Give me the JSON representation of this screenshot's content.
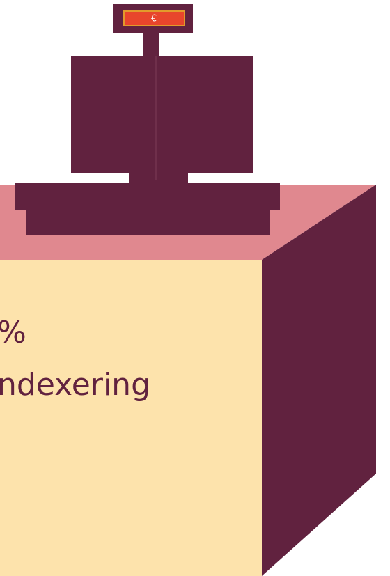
{
  "display": {
    "symbol": "€"
  },
  "box": {
    "lines": [
      "%",
      "ndexering"
    ]
  }
}
